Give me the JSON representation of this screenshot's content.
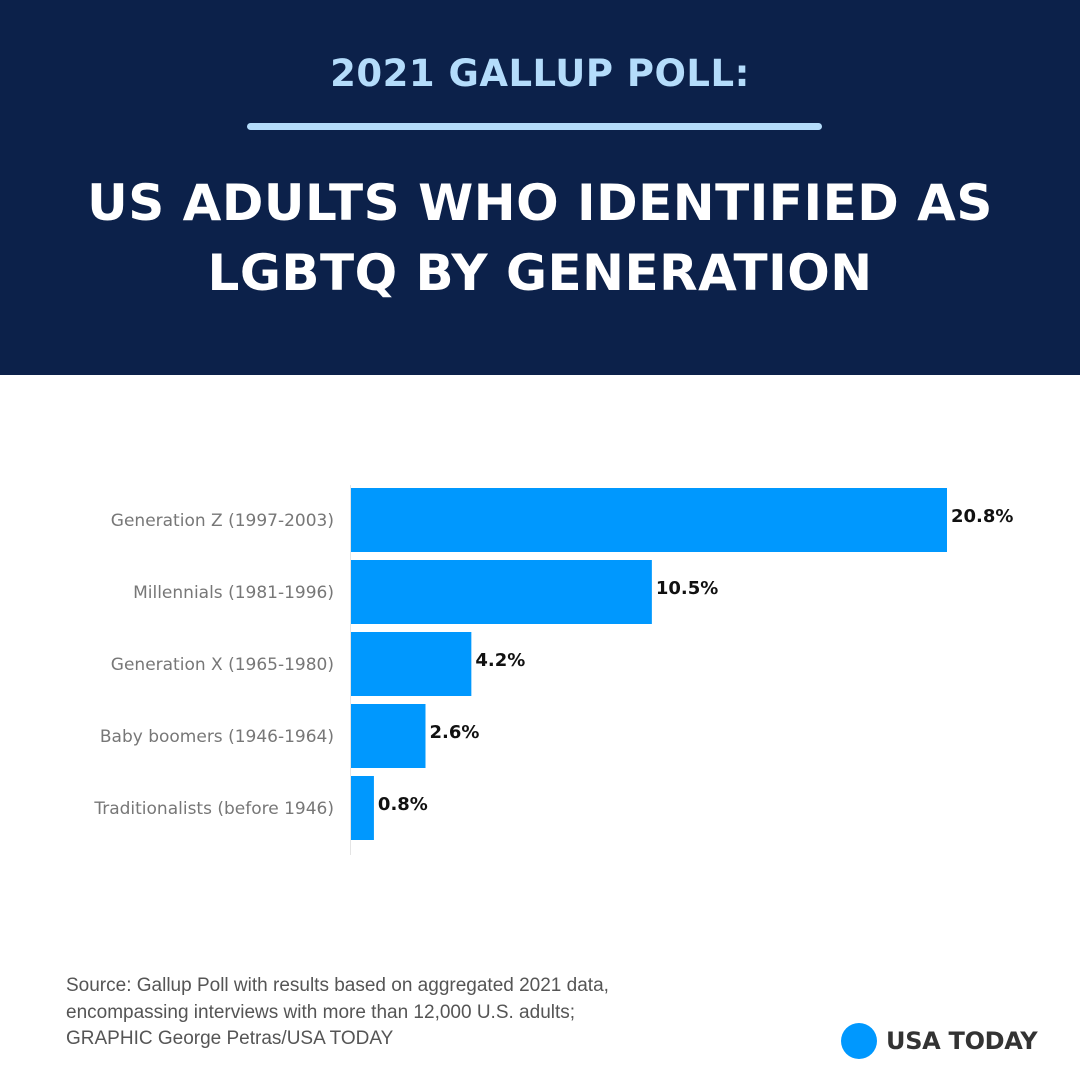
{
  "header": {
    "kicker": "2021 GALLUP POLL:",
    "title_line1": "US ADULTS WHO IDENTIFIED AS",
    "title_line2": "LGBTQ BY GENERATION"
  },
  "colors": {
    "header_bg": "#0c214a",
    "kicker": "#b4dcfb",
    "bar": "#0098fe",
    "label": "#777777",
    "value": "#111111"
  },
  "chart_data": {
    "type": "bar",
    "orientation": "horizontal",
    "title": "US adults who identified as LGBTQ by generation",
    "xlabel": "",
    "ylabel": "",
    "unit": "%",
    "xlim": [
      0,
      20.8
    ],
    "grid": false,
    "legend": "none",
    "categories": [
      "Generation Z (1997-2003)",
      "Millennials (1981-1996)",
      "Generation X (1965-1980)",
      "Baby boomers (1946-1964)",
      "Traditionalists (before 1946)"
    ],
    "values": [
      20.8,
      10.5,
      4.2,
      2.6,
      0.8
    ],
    "value_labels": [
      "20.8%",
      "10.5%",
      "4.2%",
      "2.6%",
      "0.8%"
    ]
  },
  "footer": {
    "source_line1": "Source: Gallup Poll with results based on aggregated 2021 data,",
    "source_line2": "encompassing interviews with more than 12,000 U.S. adults;",
    "source_line3": "GRAPHIC George Petras/USA TODAY",
    "logo_text": "USA TODAY"
  }
}
